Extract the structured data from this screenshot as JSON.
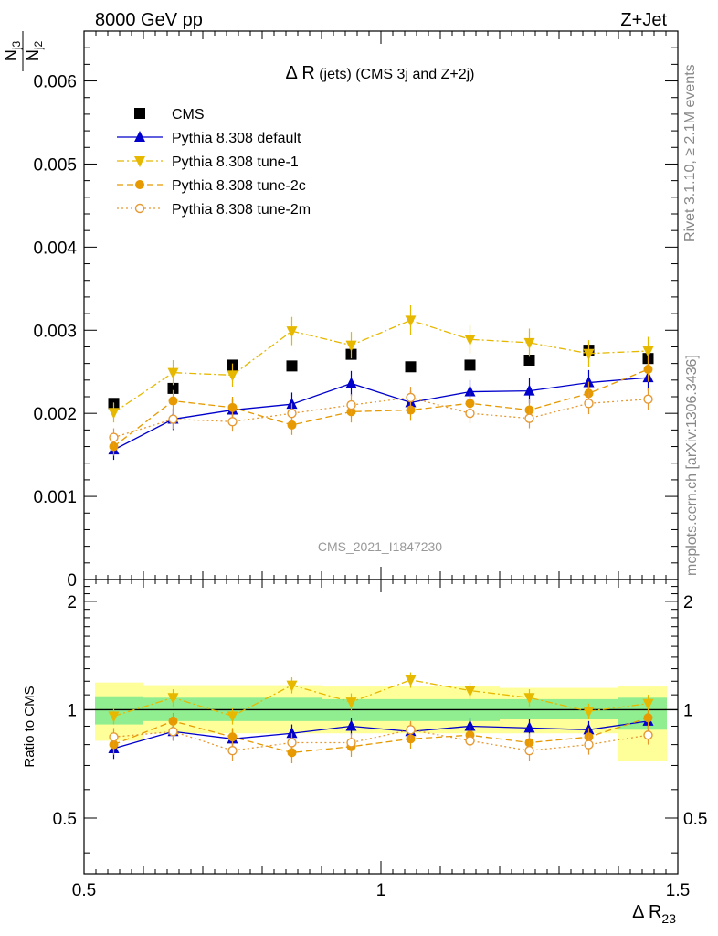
{
  "header": {
    "left": "8000 GeV pp",
    "right": "Z+Jet"
  },
  "side_text": {
    "rivet": "Rivet 3.1.10, ≥ 2.1M events",
    "mcplots": "mcplots.cern.ch [arXiv:1306.3436]"
  },
  "analysis_id": "CMS_2021_I1847230",
  "chart_data": [
    {
      "type": "scatter",
      "title_main": "Δ R",
      "title_rest": "(jets) (CMS 3j and Z+2j)",
      "ylabel_num": "N",
      "ylabel_num_sub": "j3",
      "ylabel_den": "N",
      "ylabel_den_sub": "j2",
      "xlim": [
        0.5,
        1.5
      ],
      "ylim": [
        0,
        0.0066
      ],
      "yticks": [
        0,
        0.001,
        0.002,
        0.003,
        0.004,
        0.005,
        0.006
      ],
      "ytick_labels": [
        "0",
        "0.001",
        "0.002",
        "0.003",
        "0.004",
        "0.005",
        "0.006"
      ],
      "x": [
        0.55,
        0.65,
        0.75,
        0.85,
        0.95,
        1.05,
        1.15,
        1.25,
        1.35,
        1.45
      ],
      "series": [
        {
          "name": "CMS",
          "color": "#000000",
          "marker": "square",
          "line": "none",
          "values": [
            0.00212,
            0.0023,
            0.00258,
            0.00257,
            0.00271,
            0.00256,
            0.00258,
            0.00264,
            0.00276,
            0.00266
          ]
        },
        {
          "name": "Pythia 8.308 default",
          "color": "#0000cc",
          "marker": "triangle-up",
          "line": "solid",
          "values": [
            0.00156,
            0.00193,
            0.00204,
            0.00211,
            0.00236,
            0.00213,
            0.00226,
            0.00227,
            0.00237,
            0.00243
          ],
          "errors": [
            0.00012,
            0.00013,
            0.00013,
            0.00014,
            0.00015,
            0.00014,
            0.00014,
            0.00015,
            0.00015,
            0.00016
          ]
        },
        {
          "name": "Pythia 8.308 tune-1",
          "color": "#e6b800",
          "marker": "triangle-down",
          "line": "dashdot",
          "values": [
            0.00201,
            0.00249,
            0.00246,
            0.00299,
            0.00282,
            0.00312,
            0.00289,
            0.00285,
            0.00272,
            0.00275
          ],
          "errors": [
            0.00012,
            0.00015,
            0.00014,
            0.00017,
            0.00016,
            0.00018,
            0.00017,
            0.00017,
            0.00016,
            0.00017
          ]
        },
        {
          "name": "Pythia 8.308 tune-2c",
          "color": "#e69900",
          "marker": "circle-filled",
          "line": "dashed",
          "values": [
            0.0016,
            0.00215,
            0.00207,
            0.00186,
            0.00202,
            0.00204,
            0.00212,
            0.00204,
            0.00224,
            0.00253
          ],
          "errors": [
            0.00011,
            0.00013,
            0.00013,
            0.00012,
            0.00013,
            0.00013,
            0.00013,
            0.00013,
            0.00014,
            0.00015
          ]
        },
        {
          "name": "Pythia 8.308 tune-2m",
          "color": "#e69933",
          "marker": "circle-open",
          "line": "dotted",
          "values": [
            0.00171,
            0.00193,
            0.0019,
            0.002,
            0.0021,
            0.00219,
            0.002,
            0.00194,
            0.00212,
            0.00217
          ],
          "errors": [
            0.00011,
            0.00012,
            0.00012,
            0.00012,
            0.00013,
            0.00013,
            0.00012,
            0.00012,
            0.00013,
            0.00013
          ]
        }
      ],
      "legend": "top-left"
    },
    {
      "type": "scatter",
      "ylabel": "Ratio to CMS",
      "xlabel_main": "Δ R",
      "xlabel_sub": "23",
      "xlim": [
        0.5,
        1.5
      ],
      "ylim": [
        0.35,
        2.3
      ],
      "yticks": [
        0.5,
        1,
        2
      ],
      "ytick_labels": [
        "0.5",
        "1",
        "2"
      ],
      "xticks": [
        0.5,
        1,
        1.5
      ],
      "xtick_labels": [
        "0.5",
        "1",
        "1.5"
      ],
      "bands": [
        {
          "x0": 0.5,
          "x1": 0.6,
          "inner": [
            0.91,
            1.09
          ],
          "outer": [
            0.82,
            1.19
          ]
        },
        {
          "x0": 0.6,
          "x1": 0.7,
          "inner": [
            0.93,
            1.08
          ],
          "outer": [
            0.86,
            1.17
          ]
        },
        {
          "x0": 0.7,
          "x1": 0.8,
          "inner": [
            0.93,
            1.08
          ],
          "outer": [
            0.86,
            1.17
          ]
        },
        {
          "x0": 0.8,
          "x1": 0.9,
          "inner": [
            0.93,
            1.08
          ],
          "outer": [
            0.86,
            1.17
          ]
        },
        {
          "x0": 0.9,
          "x1": 1.0,
          "inner": [
            0.93,
            1.07
          ],
          "outer": [
            0.86,
            1.16
          ]
        },
        {
          "x0": 1.0,
          "x1": 1.1,
          "inner": [
            0.93,
            1.07
          ],
          "outer": [
            0.86,
            1.16
          ]
        },
        {
          "x0": 1.1,
          "x1": 1.2,
          "inner": [
            0.93,
            1.07
          ],
          "outer": [
            0.86,
            1.16
          ]
        },
        {
          "x0": 1.2,
          "x1": 1.3,
          "inner": [
            0.94,
            1.07
          ],
          "outer": [
            0.86,
            1.15
          ]
        },
        {
          "x0": 1.3,
          "x1": 1.4,
          "inner": [
            0.94,
            1.07
          ],
          "outer": [
            0.86,
            1.15
          ]
        },
        {
          "x0": 1.4,
          "x1": 1.5,
          "inner": [
            0.88,
            1.08
          ],
          "outer": [
            0.72,
            1.16
          ]
        }
      ],
      "x": [
        0.55,
        0.65,
        0.75,
        0.85,
        0.95,
        1.05,
        1.15,
        1.25,
        1.35,
        1.45
      ],
      "series": [
        {
          "name": "Pythia 8.308 default",
          "color": "#0000cc",
          "marker": "triangle-up",
          "line": "solid",
          "values": [
            0.78,
            0.87,
            0.83,
            0.86,
            0.9,
            0.87,
            0.9,
            0.89,
            0.88,
            0.93
          ],
          "errors": [
            0.05,
            0.05,
            0.05,
            0.05,
            0.05,
            0.05,
            0.05,
            0.05,
            0.05,
            0.05
          ]
        },
        {
          "name": "Pythia 8.308 tune-1",
          "color": "#e6b800",
          "marker": "triangle-down",
          "line": "dashdot",
          "values": [
            0.96,
            1.08,
            0.96,
            1.17,
            1.05,
            1.21,
            1.13,
            1.08,
            0.99,
            1.04
          ],
          "errors": [
            0.05,
            0.06,
            0.05,
            0.06,
            0.06,
            0.06,
            0.06,
            0.06,
            0.05,
            0.06
          ]
        },
        {
          "name": "Pythia 8.308 tune-2c",
          "color": "#e69900",
          "marker": "circle-filled",
          "line": "dashed",
          "values": [
            0.8,
            0.93,
            0.84,
            0.76,
            0.79,
            0.83,
            0.85,
            0.81,
            0.84,
            0.95
          ],
          "errors": [
            0.05,
            0.05,
            0.05,
            0.05,
            0.05,
            0.05,
            0.05,
            0.05,
            0.05,
            0.05
          ]
        },
        {
          "name": "Pythia 8.308 tune-2m",
          "color": "#e69933",
          "marker": "circle-open",
          "line": "dotted",
          "values": [
            0.84,
            0.87,
            0.77,
            0.81,
            0.81,
            0.88,
            0.82,
            0.77,
            0.8,
            0.85
          ],
          "errors": [
            0.05,
            0.05,
            0.05,
            0.05,
            0.05,
            0.05,
            0.05,
            0.05,
            0.05,
            0.05
          ]
        }
      ]
    }
  ],
  "colors": {
    "band_inner": "#90ee90",
    "band_outer": "#ffff99",
    "axis": "#000000",
    "side_text": "#888888"
  }
}
